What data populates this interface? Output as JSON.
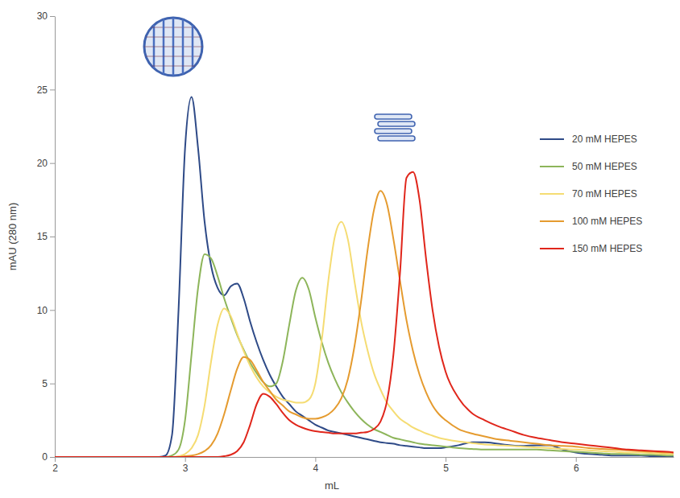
{
  "chart_data": {
    "type": "line",
    "x_label": "mL",
    "y_label": "mAU (280 nm)",
    "x": [
      2.0,
      2.5,
      2.8,
      2.85,
      2.9,
      2.95,
      3.0,
      3.05,
      3.1,
      3.15,
      3.2,
      3.25,
      3.3,
      3.35,
      3.4,
      3.45,
      3.5,
      3.55,
      3.6,
      3.65,
      3.7,
      3.75,
      3.8,
      3.85,
      3.9,
      3.95,
      4.0,
      4.05,
      4.1,
      4.15,
      4.2,
      4.25,
      4.3,
      4.35,
      4.4,
      4.45,
      4.5,
      4.55,
      4.6,
      4.65,
      4.7,
      4.75,
      4.8,
      4.85,
      4.9,
      4.95,
      5.0,
      5.1,
      5.2,
      5.3,
      5.4,
      5.5,
      5.6,
      5.7,
      5.8,
      5.9,
      6.0,
      6.1,
      6.2,
      6.3,
      6.4,
      6.5,
      6.6,
      6.7,
      6.75
    ],
    "series": [
      {
        "name": "20 mM HEPES",
        "color": "#2e4a87",
        "values": [
          0,
          0,
          0,
          0.1,
          1.5,
          10,
          21,
          24.5,
          21,
          16,
          13,
          11.5,
          11,
          11.6,
          11.8,
          10.8,
          9.2,
          7.8,
          6.6,
          5.6,
          4.8,
          4.1,
          3.6,
          3.1,
          2.8,
          2.5,
          2.2,
          2.0,
          1.8,
          1.7,
          1.6,
          1.5,
          1.4,
          1.3,
          1.2,
          1.1,
          1.0,
          0.95,
          0.9,
          0.8,
          0.75,
          0.7,
          0.65,
          0.6,
          0.6,
          0.6,
          0.65,
          0.8,
          1.0,
          1.0,
          0.9,
          0.8,
          0.75,
          0.8,
          0.8,
          0.5,
          0.3,
          0.2,
          0.15,
          0.1,
          0.1,
          0.1,
          0.05,
          0.05,
          0.05
        ]
      },
      {
        "name": "50 mM HEPES",
        "color": "#8db55a",
        "values": [
          0,
          0,
          0,
          0,
          0.1,
          0.5,
          2.5,
          7,
          11.5,
          13.8,
          13.5,
          12.3,
          10.8,
          9.5,
          8.3,
          7.3,
          6.4,
          5.7,
          5.1,
          4.8,
          5.0,
          6.5,
          9.0,
          11.3,
          12.2,
          11.4,
          9.5,
          7.8,
          6.4,
          5.3,
          4.4,
          3.7,
          3.1,
          2.6,
          2.2,
          1.9,
          1.7,
          1.5,
          1.3,
          1.2,
          1.1,
          1.0,
          0.9,
          0.85,
          0.8,
          0.75,
          0.7,
          0.6,
          0.55,
          0.5,
          0.5,
          0.5,
          0.5,
          0.5,
          0.45,
          0.4,
          0.35,
          0.3,
          0.25,
          0.2,
          0.2,
          0.15,
          0.15,
          0.1,
          0.1
        ]
      },
      {
        "name": "70 mM HEPES",
        "color": "#f5dc73",
        "values": [
          0,
          0,
          0,
          0,
          0,
          0.05,
          0.2,
          0.6,
          1.5,
          3.5,
          6.5,
          9.0,
          10.1,
          9.6,
          8.4,
          7.2,
          6.2,
          5.4,
          4.8,
          4.4,
          4.1,
          3.9,
          3.8,
          3.7,
          3.7,
          3.9,
          5.0,
          8.0,
          12.0,
          15.0,
          16.0,
          14.8,
          12.0,
          9.3,
          7.3,
          5.7,
          4.6,
          3.7,
          3.1,
          2.6,
          2.3,
          2.0,
          1.8,
          1.6,
          1.45,
          1.3,
          1.2,
          1.05,
          0.95,
          0.85,
          0.8,
          0.75,
          0.7,
          0.65,
          0.6,
          0.55,
          0.5,
          0.45,
          0.4,
          0.35,
          0.3,
          0.3,
          0.25,
          0.2,
          0.2
        ]
      },
      {
        "name": "100 mM HEPES",
        "color": "#e59b2f",
        "values": [
          0,
          0,
          0,
          0,
          0,
          0,
          0.05,
          0.1,
          0.2,
          0.4,
          0.8,
          1.6,
          2.9,
          4.5,
          6.0,
          6.8,
          6.6,
          5.9,
          5.1,
          4.5,
          3.9,
          3.5,
          3.1,
          2.9,
          2.7,
          2.6,
          2.6,
          2.7,
          2.9,
          3.3,
          4.0,
          5.3,
          7.5,
          10.5,
          14.0,
          16.8,
          18.1,
          17.2,
          14.8,
          12.0,
          9.3,
          7.2,
          5.6,
          4.4,
          3.5,
          2.9,
          2.5,
          1.9,
          1.6,
          1.4,
          1.2,
          1.1,
          1.0,
          0.9,
          0.8,
          0.75,
          0.7,
          0.6,
          0.55,
          0.5,
          0.45,
          0.4,
          0.35,
          0.3,
          0.3
        ]
      },
      {
        "name": "150 mM HEPES",
        "color": "#e0261b",
        "values": [
          0,
          0,
          0,
          0,
          0,
          0,
          0,
          0,
          0,
          0,
          0,
          0,
          0.05,
          0.15,
          0.4,
          1.0,
          2.2,
          3.6,
          4.3,
          4.1,
          3.6,
          3.0,
          2.5,
          2.2,
          2.0,
          1.85,
          1.75,
          1.7,
          1.65,
          1.6,
          1.6,
          1.6,
          1.6,
          1.65,
          1.7,
          1.9,
          2.4,
          3.8,
          7.0,
          12.5,
          19.0,
          19.4,
          17.5,
          13.5,
          10.0,
          7.5,
          5.8,
          4.0,
          3.0,
          2.5,
          2.1,
          1.8,
          1.5,
          1.3,
          1.15,
          1.0,
          0.9,
          0.8,
          0.7,
          0.6,
          0.5,
          0.45,
          0.4,
          0.35,
          0.3
        ]
      }
    ],
    "xlim": [
      2,
      6.75
    ],
    "xticks": [
      2,
      3,
      4,
      5,
      6
    ],
    "ylim": [
      0,
      30
    ],
    "yticks": [
      0,
      5,
      10,
      15,
      20,
      25,
      30
    ],
    "grid": false,
    "legend": "upper right"
  }
}
